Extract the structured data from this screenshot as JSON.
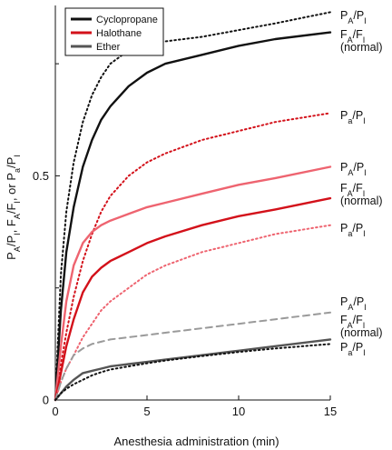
{
  "chart_data": {
    "type": "line",
    "title": "",
    "xlabel": "Anesthesia administration (min)",
    "ylabel": "P_A/P_I, F_A/F_I, or P_a/P_I",
    "xlim": [
      0,
      15
    ],
    "ylim": [
      0,
      0.88
    ],
    "x_ticks": [
      0,
      5,
      10,
      15
    ],
    "y_ticks": [
      0,
      0.5
    ],
    "y_minor_ticks": [
      0.25,
      0.75
    ],
    "grid": false,
    "legend_position": "top-left",
    "series": [
      {
        "name": "",
        "label": "P_A/P_I",
        "agent": "Cyclopropane",
        "color": "#111111",
        "dash": "dotted",
        "x": [
          0,
          0.3,
          0.6,
          1,
          1.5,
          2,
          2.5,
          3,
          4,
          5,
          6,
          8,
          10,
          12,
          15
        ],
        "y": [
          0,
          0.28,
          0.42,
          0.53,
          0.62,
          0.68,
          0.72,
          0.75,
          0.78,
          0.79,
          0.8,
          0.81,
          0.825,
          0.84,
          0.865
        ]
      },
      {
        "name": "Cyclopropane",
        "label": "F_A/F_I\n(normal)",
        "agent": "Cyclopropane",
        "color": "#111111",
        "dash": "solid",
        "x": [
          0,
          0.3,
          0.6,
          1,
          1.5,
          2,
          2.5,
          3,
          4,
          5,
          6,
          8,
          10,
          12,
          15
        ],
        "y": [
          0,
          0.2,
          0.33,
          0.43,
          0.52,
          0.58,
          0.625,
          0.655,
          0.7,
          0.73,
          0.75,
          0.77,
          0.79,
          0.805,
          0.82
        ]
      },
      {
        "name": "",
        "label": "P_a/P_I",
        "agent": "Cyclopropane",
        "color": "#d3111a",
        "dash": "dotted",
        "x": [
          0,
          0.3,
          0.6,
          1,
          1.5,
          2,
          2.5,
          3,
          4,
          5,
          6,
          8,
          10,
          12,
          15
        ],
        "y": [
          0,
          0.08,
          0.15,
          0.23,
          0.31,
          0.37,
          0.42,
          0.455,
          0.5,
          0.53,
          0.55,
          0.58,
          0.6,
          0.62,
          0.64
        ]
      },
      {
        "name": "",
        "label": "P_A/P_I",
        "agent": "Halothane",
        "color": "#ee6470",
        "dash": "solid",
        "x": [
          0,
          0.3,
          0.6,
          1,
          1.5,
          2,
          2.5,
          3,
          4,
          5,
          6,
          8,
          10,
          12,
          15
        ],
        "y": [
          0,
          0.12,
          0.22,
          0.3,
          0.35,
          0.375,
          0.39,
          0.4,
          0.415,
          0.43,
          0.44,
          0.46,
          0.48,
          0.495,
          0.52
        ]
      },
      {
        "name": "Halothane",
        "label": "F_A/F_I\n(normal)",
        "agent": "Halothane",
        "color": "#d3111a",
        "dash": "solid",
        "x": [
          0,
          0.3,
          0.6,
          1,
          1.5,
          2,
          2.5,
          3,
          4,
          5,
          6,
          8,
          10,
          12,
          15
        ],
        "y": [
          0,
          0.06,
          0.12,
          0.18,
          0.24,
          0.275,
          0.295,
          0.31,
          0.33,
          0.35,
          0.365,
          0.39,
          0.41,
          0.425,
          0.45
        ]
      },
      {
        "name": "",
        "label": "P_a/P_I",
        "agent": "Halothane",
        "color": "#ee6470",
        "dash": "dotted",
        "x": [
          0,
          0.3,
          0.6,
          1,
          1.5,
          2,
          2.5,
          3,
          4,
          5,
          6,
          8,
          10,
          12,
          15
        ],
        "y": [
          0,
          0.04,
          0.07,
          0.1,
          0.14,
          0.17,
          0.2,
          0.22,
          0.25,
          0.28,
          0.3,
          0.33,
          0.35,
          0.37,
          0.39
        ]
      },
      {
        "name": "",
        "label": "P_A/P_I",
        "agent": "Ether",
        "color": "#9a9a9a",
        "dash": "dashed",
        "x": [
          0,
          0.3,
          0.6,
          1,
          1.5,
          2,
          2.5,
          3,
          4,
          5,
          6,
          8,
          10,
          12,
          15
        ],
        "y": [
          0,
          0.04,
          0.07,
          0.1,
          0.115,
          0.125,
          0.13,
          0.135,
          0.14,
          0.145,
          0.15,
          0.16,
          0.17,
          0.18,
          0.195
        ]
      },
      {
        "name": "Ether",
        "label": "F_A/F_I\n(normal)",
        "agent": "Ether",
        "color": "#555555",
        "dash": "solid",
        "x": [
          0,
          0.3,
          0.6,
          1,
          1.5,
          2,
          2.5,
          3,
          4,
          5,
          6,
          8,
          10,
          12,
          15
        ],
        "y": [
          0,
          0.015,
          0.03,
          0.045,
          0.06,
          0.065,
          0.07,
          0.075,
          0.08,
          0.085,
          0.09,
          0.1,
          0.11,
          0.12,
          0.135
        ]
      },
      {
        "name": "",
        "label": "P_a/P_I",
        "agent": "Ether",
        "color": "#111111",
        "dash": "dotted",
        "x": [
          0,
          0.3,
          0.6,
          1,
          1.5,
          2,
          2.5,
          3,
          4,
          5,
          6,
          8,
          10,
          12,
          15
        ],
        "y": [
          0,
          0.015,
          0.025,
          0.035,
          0.045,
          0.055,
          0.062,
          0.068,
          0.075,
          0.082,
          0.088,
          0.098,
          0.107,
          0.115,
          0.125
        ]
      }
    ],
    "curve_labels": [
      {
        "lines": [
          [
            [
              "P",
              "n"
            ],
            [
              "A",
              "s"
            ],
            [
              "/P",
              "n"
            ],
            [
              "I",
              "s"
            ]
          ]
        ]
      },
      {
        "lines": [
          [
            [
              "F",
              "n"
            ],
            [
              "A",
              "s"
            ],
            [
              "/F",
              "n"
            ],
            [
              "I",
              "s"
            ]
          ],
          [
            [
              "(normal)",
              "n"
            ]
          ]
        ]
      },
      {
        "lines": [
          [
            [
              "P",
              "n"
            ],
            [
              "a",
              "s"
            ],
            [
              "/P",
              "n"
            ],
            [
              "I",
              "s"
            ]
          ]
        ]
      },
      {
        "lines": [
          [
            [
              "P",
              "n"
            ],
            [
              "A",
              "s"
            ],
            [
              "/P",
              "n"
            ],
            [
              "I",
              "s"
            ]
          ]
        ]
      },
      {
        "lines": [
          [
            [
              "F",
              "n"
            ],
            [
              "A",
              "s"
            ],
            [
              "/F",
              "n"
            ],
            [
              "I",
              "s"
            ]
          ],
          [
            [
              "(normal)",
              "n"
            ]
          ]
        ]
      },
      {
        "lines": [
          [
            [
              "P",
              "n"
            ],
            [
              "a",
              "s"
            ],
            [
              "/P",
              "n"
            ],
            [
              "I",
              "s"
            ]
          ]
        ]
      },
      {
        "lines": [
          [
            [
              "P",
              "n"
            ],
            [
              "A",
              "s"
            ],
            [
              "/P",
              "n"
            ],
            [
              "I",
              "s"
            ]
          ]
        ]
      },
      {
        "lines": [
          [
            [
              "F",
              "n"
            ],
            [
              "A",
              "s"
            ],
            [
              "/F",
              "n"
            ],
            [
              "I",
              "s"
            ]
          ],
          [
            [
              "(normal)",
              "n"
            ]
          ]
        ]
      },
      {
        "lines": [
          [
            [
              "P",
              "n"
            ],
            [
              "a",
              "s"
            ],
            [
              "/P",
              "n"
            ],
            [
              "I",
              "s"
            ]
          ]
        ]
      }
    ],
    "ylabel_parts": [
      [
        "P",
        "n"
      ],
      [
        "A",
        "s"
      ],
      [
        "/P",
        "n"
      ],
      [
        "I",
        "s"
      ],
      [
        ", F",
        "n"
      ],
      [
        "A",
        "s"
      ],
      [
        "/F",
        "n"
      ],
      [
        "I",
        "s"
      ],
      [
        ", or P",
        "n"
      ],
      [
        "a",
        "s"
      ],
      [
        "/P",
        "n"
      ],
      [
        "I",
        "s"
      ]
    ],
    "legend": [
      {
        "label": "Cyclopropane",
        "color": "#111111"
      },
      {
        "label": "Halothane",
        "color": "#d3111a"
      },
      {
        "label": "Ether",
        "color": "#555555"
      }
    ]
  }
}
